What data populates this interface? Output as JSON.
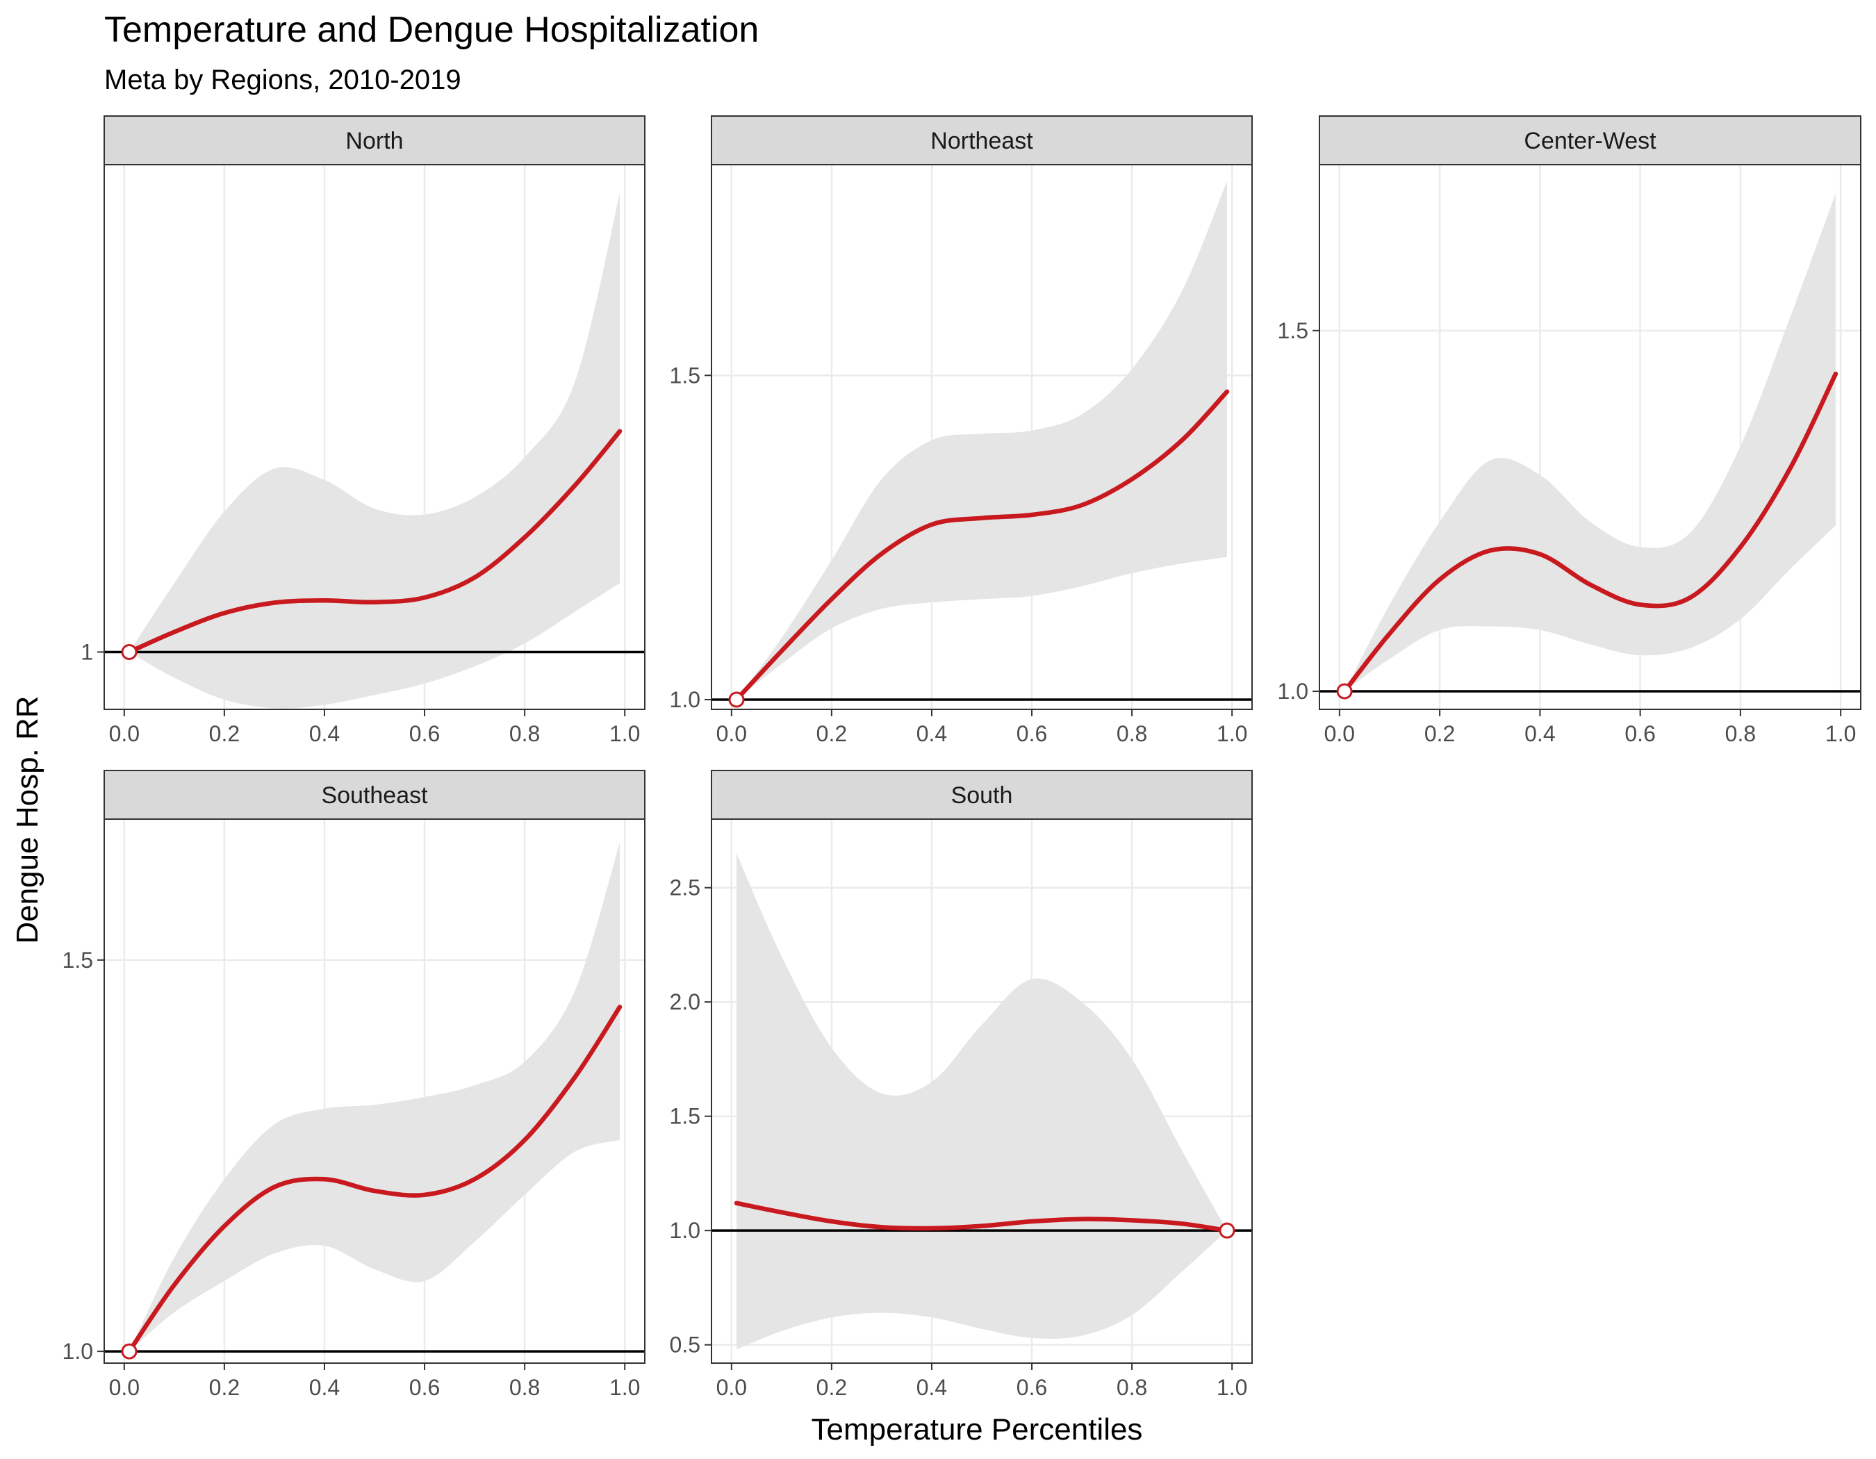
{
  "title": "Temperature and Dengue Hospitalization",
  "subtitle": "Meta by Regions, 2010-2019",
  "xlabel": "Temperature Percentiles",
  "ylabel": "Dengue Hosp. RR",
  "colors": {
    "line": "#c8191f",
    "ribbon": "#e5e5e5",
    "strip": "#d9d9d9",
    "grid": "#ebebeb",
    "reference": "#000000",
    "panel_border": "#333333"
  },
  "chart_data": [
    {
      "type": "line",
      "panel": "North",
      "x_ticks": [
        "0.0",
        "0.2",
        "0.4",
        "0.6",
        "0.8",
        "1.0"
      ],
      "xlim": [
        -0.04,
        1.04
      ],
      "y_ticks": [
        {
          "value": 1.0,
          "label": "1"
        }
      ],
      "ylim": [
        0.9,
        1.85
      ],
      "ref_point": [
        0.01,
        1.0
      ],
      "series": [
        {
          "x": [
            0.01,
            0.1,
            0.2,
            0.3,
            0.4,
            0.5,
            0.6,
            0.7,
            0.8,
            0.9,
            0.99
          ],
          "y": [
            1.0,
            1.035,
            1.068,
            1.086,
            1.09,
            1.087,
            1.095,
            1.13,
            1.2,
            1.29,
            1.385
          ],
          "lower": [
            1.0,
            0.955,
            0.917,
            0.902,
            0.908,
            0.925,
            0.945,
            0.975,
            1.015,
            1.07,
            1.12
          ],
          "upper": [
            1.0,
            1.12,
            1.245,
            1.32,
            1.3,
            1.25,
            1.24,
            1.27,
            1.34,
            1.47,
            1.8
          ]
        }
      ]
    },
    {
      "type": "line",
      "panel": "Northeast",
      "x_ticks": [
        "0.0",
        "0.2",
        "0.4",
        "0.6",
        "0.8",
        "1.0"
      ],
      "xlim": [
        -0.04,
        1.04
      ],
      "y_ticks": [
        {
          "value": 1.0,
          "label": "1.0"
        },
        {
          "value": 1.5,
          "label": "1.5"
        }
      ],
      "ylim": [
        0.985,
        1.825
      ],
      "ref_point": [
        0.01,
        1.0
      ],
      "series": [
        {
          "x": [
            0.01,
            0.1,
            0.2,
            0.3,
            0.4,
            0.5,
            0.6,
            0.7,
            0.8,
            0.9,
            0.99
          ],
          "y": [
            1.0,
            1.075,
            1.155,
            1.225,
            1.27,
            1.28,
            1.285,
            1.3,
            1.34,
            1.4,
            1.475
          ],
          "lower": [
            1.0,
            1.055,
            1.11,
            1.14,
            1.15,
            1.155,
            1.16,
            1.175,
            1.195,
            1.21,
            1.22
          ],
          "upper": [
            1.0,
            1.095,
            1.215,
            1.34,
            1.4,
            1.41,
            1.415,
            1.44,
            1.51,
            1.63,
            1.8
          ]
        }
      ]
    },
    {
      "type": "line",
      "panel": "Center-West",
      "x_ticks": [
        "0.0",
        "0.2",
        "0.4",
        "0.6",
        "0.8",
        "1.0"
      ],
      "xlim": [
        -0.04,
        1.04
      ],
      "y_ticks": [
        {
          "value": 1.0,
          "label": "1.0"
        },
        {
          "value": 1.5,
          "label": "1.5"
        }
      ],
      "ylim": [
        0.975,
        1.73
      ],
      "ref_point": [
        0.01,
        1.0
      ],
      "series": [
        {
          "x": [
            0.01,
            0.1,
            0.2,
            0.3,
            0.4,
            0.5,
            0.6,
            0.7,
            0.8,
            0.9,
            0.99
          ],
          "y": [
            1.0,
            1.08,
            1.155,
            1.195,
            1.19,
            1.148,
            1.12,
            1.13,
            1.2,
            1.31,
            1.44
          ],
          "lower": [
            1.0,
            1.045,
            1.085,
            1.09,
            1.085,
            1.065,
            1.05,
            1.06,
            1.1,
            1.17,
            1.23
          ],
          "upper": [
            1.0,
            1.12,
            1.235,
            1.32,
            1.3,
            1.235,
            1.2,
            1.22,
            1.34,
            1.52,
            1.69
          ]
        }
      ]
    },
    {
      "type": "line",
      "panel": "Southeast",
      "x_ticks": [
        "0.0",
        "0.2",
        "0.4",
        "0.6",
        "0.8",
        "1.0"
      ],
      "xlim": [
        -0.04,
        1.04
      ],
      "y_ticks": [
        {
          "value": 1.0,
          "label": "1.0"
        },
        {
          "value": 1.5,
          "label": "1.5"
        }
      ],
      "ylim": [
        0.985,
        1.68
      ],
      "ref_point": [
        0.01,
        1.0
      ],
      "series": [
        {
          "x": [
            0.01,
            0.1,
            0.2,
            0.3,
            0.4,
            0.5,
            0.6,
            0.7,
            0.8,
            0.9,
            0.99
          ],
          "y": [
            1.0,
            1.085,
            1.16,
            1.21,
            1.22,
            1.205,
            1.2,
            1.22,
            1.27,
            1.35,
            1.44
          ],
          "lower": [
            1.0,
            1.05,
            1.09,
            1.125,
            1.135,
            1.105,
            1.09,
            1.14,
            1.2,
            1.255,
            1.27
          ],
          "upper": [
            1.0,
            1.12,
            1.22,
            1.29,
            1.31,
            1.315,
            1.325,
            1.34,
            1.37,
            1.46,
            1.65
          ]
        }
      ]
    },
    {
      "type": "line",
      "panel": "South",
      "x_ticks": [
        "0.0",
        "0.2",
        "0.4",
        "0.6",
        "0.8",
        "1.0"
      ],
      "xlim": [
        -0.04,
        1.04
      ],
      "y_ticks": [
        {
          "value": 0.5,
          "label": "0.5"
        },
        {
          "value": 1.0,
          "label": "1.0"
        },
        {
          "value": 1.5,
          "label": "1.5"
        },
        {
          "value": 2.0,
          "label": "2.0"
        },
        {
          "value": 2.5,
          "label": "2.5"
        }
      ],
      "ylim": [
        0.42,
        2.8
      ],
      "ref_point": [
        0.99,
        1.0
      ],
      "series": [
        {
          "x": [
            0.01,
            0.1,
            0.2,
            0.3,
            0.4,
            0.5,
            0.6,
            0.7,
            0.8,
            0.9,
            0.99
          ],
          "y": [
            1.12,
            1.08,
            1.04,
            1.015,
            1.01,
            1.02,
            1.04,
            1.05,
            1.045,
            1.03,
            1.0
          ],
          "lower": [
            0.48,
            0.56,
            0.62,
            0.64,
            0.62,
            0.57,
            0.53,
            0.54,
            0.63,
            0.82,
            1.0
          ],
          "upper": [
            2.65,
            2.2,
            1.8,
            1.6,
            1.65,
            1.9,
            2.1,
            2.0,
            1.75,
            1.35,
            1.0
          ]
        }
      ]
    }
  ]
}
